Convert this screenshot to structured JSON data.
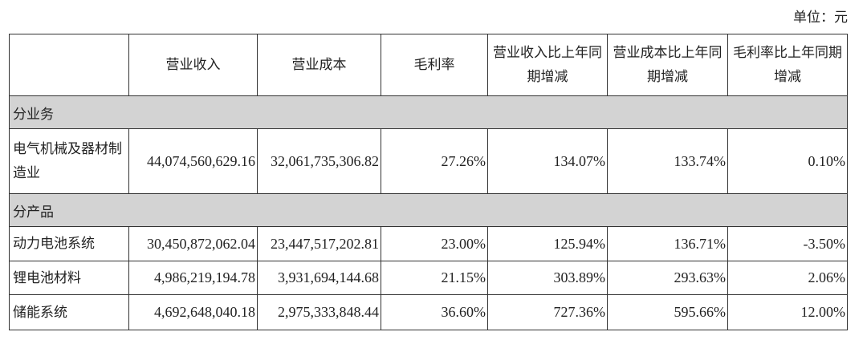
{
  "unit_label": "单位：元",
  "headers": [
    "",
    "营业收入",
    "营业成本",
    "毛利率",
    "营业收入比上年同期增减",
    "营业成本比上年同期增减",
    "毛利率比上年同期增减"
  ],
  "sections": [
    {
      "title": "分业务",
      "rows": [
        {
          "name": "电气机械及器材制造业",
          "cells": [
            "44,074,560,629.16",
            "32,061,735,306.82",
            "27.26%",
            "134.07%",
            "133.74%",
            "0.10%"
          ]
        }
      ]
    },
    {
      "title": "分产品",
      "rows": [
        {
          "name": "动力电池系统",
          "cells": [
            "30,450,872,062.04",
            "23,447,517,202.81",
            "23.00%",
            "125.94%",
            "136.71%",
            "-3.50%"
          ]
        },
        {
          "name": "锂电池材料",
          "cells": [
            "4,986,219,194.78",
            "3,931,694,144.68",
            "21.15%",
            "303.89%",
            "293.63%",
            "2.06%"
          ]
        },
        {
          "name": "储能系统",
          "cells": [
            "4,692,648,040.18",
            "2,975,333,848.44",
            "36.60%",
            "727.36%",
            "595.66%",
            "12.00%"
          ]
        }
      ]
    }
  ]
}
